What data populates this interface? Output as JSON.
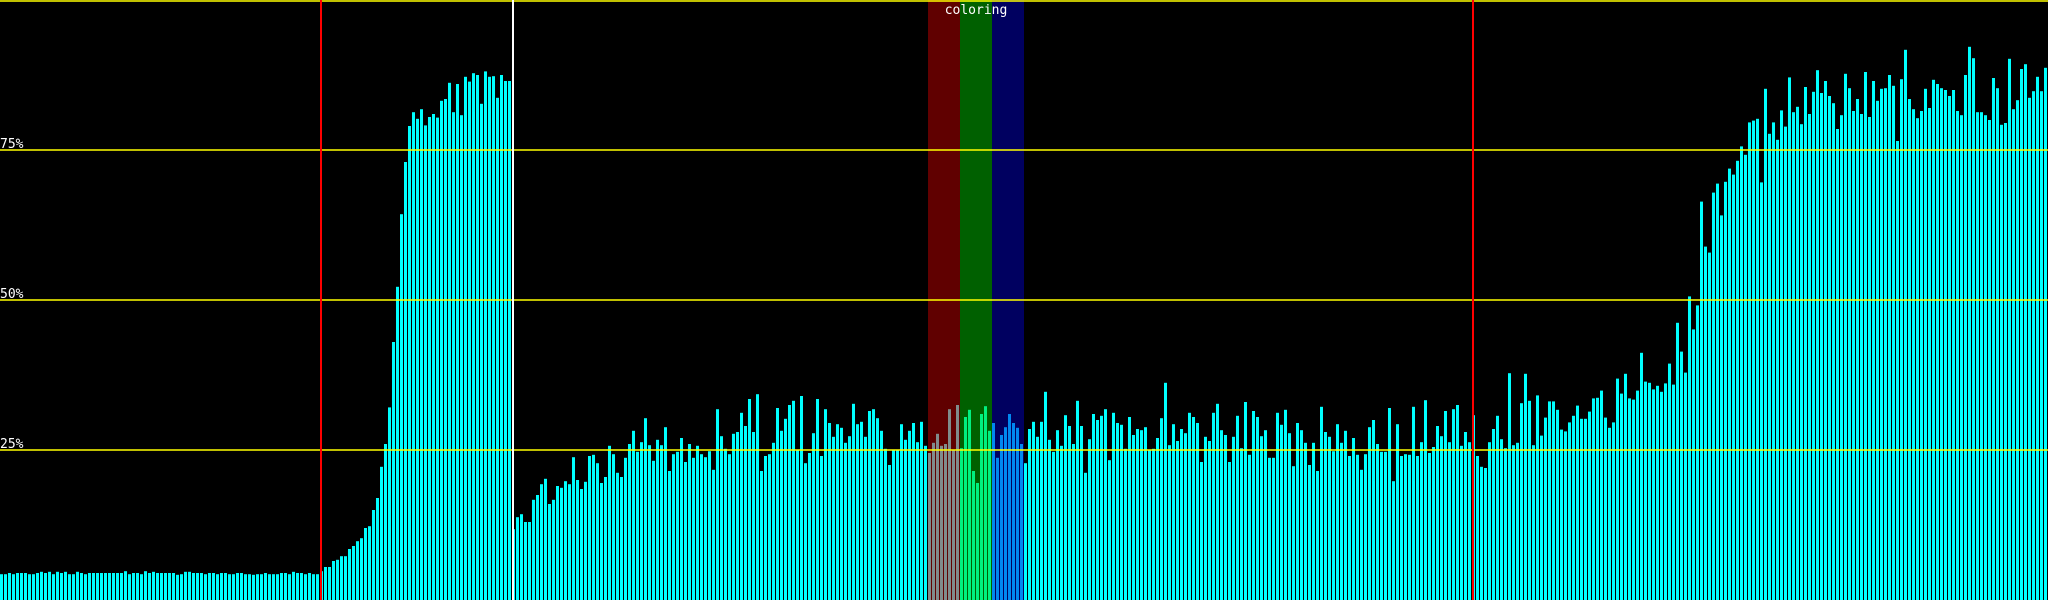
{
  "chart_data": {
    "type": "bar",
    "title": "",
    "xlabel": "",
    "ylabel": "",
    "ylim": [
      0,
      100
    ],
    "grid": true,
    "yticks": [
      {
        "value": 25,
        "label": "25%"
      },
      {
        "value": 50,
        "label": "50%"
      },
      {
        "value": 75,
        "label": "75%"
      },
      {
        "value": 100,
        "label": ""
      }
    ],
    "colors": {
      "background": "#000000",
      "bar": "#00ffff",
      "gridline": "#ffff00",
      "tick_label": "#ffffff"
    },
    "markers": [
      {
        "bar": 80,
        "color": "#ff0000"
      },
      {
        "bar": 128,
        "color": "#ffffff"
      },
      {
        "bar": 368,
        "color": "#ff0000"
      }
    ],
    "band": {
      "label": "coloring",
      "segments": [
        {
          "start_bar": 232,
          "end_bar": 240,
          "background": "#600000",
          "bar_color": "#808c8c"
        },
        {
          "start_bar": 240,
          "end_bar": 248,
          "background": "#006000",
          "bar_color": "#00f080"
        },
        {
          "start_bar": 248,
          "end_bar": 256,
          "background": "#000060",
          "bar_color": "#0088f0"
        }
      ]
    },
    "values": [
      4.3,
      4.3,
      4.5,
      4.3,
      4.5,
      4.5,
      4.5,
      4.3,
      4.3,
      4.5,
      4.7,
      4.5,
      4.7,
      4.3,
      4.7,
      4.5,
      4.7,
      4.3,
      4.3,
      4.7,
      4.5,
      4.3,
      4.5,
      4.5,
      4.5,
      4.5,
      4.5,
      4.5,
      4.5,
      4.5,
      4.5,
      4.8,
      4.3,
      4.5,
      4.5,
      4.3,
      4.8,
      4.5,
      4.7,
      4.5,
      4.5,
      4.5,
      4.5,
      4.5,
      4.2,
      4.3,
      4.7,
      4.7,
      4.5,
      4.5,
      4.5,
      4.3,
      4.5,
      4.5,
      4.3,
      4.5,
      4.5,
      4.3,
      4.3,
      4.5,
      4.5,
      4.3,
      4.3,
      4.2,
      4.3,
      4.3,
      4.5,
      4.3,
      4.3,
      4.3,
      4.5,
      4.5,
      4.3,
      4.7,
      4.5,
      4.5,
      4.3,
      4.5,
      4.3,
      4.3,
      4.8,
      5.5,
      5.5,
      6.5,
      6.7,
      7.3,
      7.3,
      8.5,
      9.0,
      9.8,
      10.3,
      12.0,
      12.3,
      15.0,
      17.0,
      22.2,
      26.0,
      32.1,
      43.0,
      52.2,
      64.3,
      73.0,
      79.0,
      81.3,
      80.2,
      81.8,
      79.1,
      80.5,
      81.0,
      80.4,
      83.2,
      83.5,
      86.2,
      81.3,
      86.0,
      80.8,
      87.2,
      86.4,
      87.8,
      87.5,
      82.7,
      88.1,
      87.2,
      87.3,
      83.7,
      87.5,
      86.5,
      86.5,
      11.8,
      13.8,
      14.3,
      13.0,
      13.0,
      16.7,
      17.5,
      19.3,
      20.2,
      16.0,
      16.7,
      19.0,
      18.7,
      19.8,
      19.3,
      23.8,
      20.0,
      18.5,
      19.7,
      24.0,
      24.2,
      22.8,
      19.5,
      20.5,
      25.7,
      24.3,
      21.2,
      20.5,
      23.7,
      26.0,
      28.2,
      24.7,
      26.3,
      30.3,
      25.8,
      23.2,
      26.7,
      25.8,
      28.8,
      21.5,
      24.3,
      24.7,
      27.0,
      23.0,
      26.0,
      23.7,
      25.7,
      24.3,
      23.8,
      24.8,
      21.7,
      31.8,
      27.3,
      25.2,
      24.3,
      27.7,
      28.0,
      31.2,
      29.0,
      33.5,
      28.0,
      34.3,
      21.5,
      24.0,
      24.3,
      26.2,
      32.0,
      28.2,
      30.2,
      32.5,
      33.2,
      25.0,
      34.0,
      22.8,
      24.5,
      27.8,
      33.5,
      24.0,
      31.8,
      29.5,
      27.2,
      29.3,
      28.7,
      26.2,
      27.3,
      32.7,
      29.3,
      29.7,
      27.2,
      31.5,
      31.8,
      30.3,
      28.2,
      25.2,
      22.5,
      25.0,
      25.0,
      29.3,
      26.7,
      28.2,
      29.5,
      26.3,
      29.7,
      25.7,
      24.5,
      26.2,
      27.7,
      25.7,
      26.0,
      31.8,
      25.0,
      32.5,
      25.3,
      30.5,
      31.7,
      21.5,
      19.5,
      31.0,
      32.3,
      28.2,
      29.5,
      23.7,
      27.5,
      28.8,
      31.0,
      29.5,
      28.7,
      26.0,
      22.8,
      28.5,
      29.7,
      27.2,
      29.7,
      34.7,
      26.7,
      24.7,
      28.3,
      25.7,
      30.8,
      29.0,
      26.0,
      33.2,
      29.0,
      21.2,
      26.8,
      31.0,
      30.0,
      30.7,
      31.8,
      23.3,
      31.2,
      29.5,
      29.2,
      25.2,
      30.5,
      27.5,
      28.5,
      28.3,
      28.8,
      25.0,
      25.2,
      27.0,
      30.3,
      36.2,
      25.8,
      29.3,
      26.5,
      28.5,
      27.8,
      31.2,
      30.5,
      29.5,
      23.0,
      27.2,
      26.5,
      31.2,
      32.7,
      28.3,
      27.5,
      23.0,
      27.2,
      30.7,
      25.3,
      33.0,
      24.2,
      31.5,
      30.5,
      27.3,
      28.3,
      23.7,
      23.7,
      31.2,
      29.2,
      31.7,
      27.8,
      22.3,
      29.5,
      28.3,
      26.2,
      22.5,
      26.2,
      21.5,
      32.2,
      28.0,
      27.2,
      24.8,
      29.3,
      26.2,
      28.2,
      24.0,
      27.0,
      24.2,
      21.7,
      24.3,
      28.8,
      30.0,
      26.0,
      24.7,
      24.7,
      32.0,
      19.8,
      29.3,
      24.0,
      24.3,
      24.2,
      32.2,
      24.0,
      26.3,
      33.3,
      24.5,
      25.5,
      29.0,
      27.3,
      31.5,
      26.3,
      31.8,
      32.5,
      25.7,
      28.0,
      26.3,
      30.8,
      24.0,
      22.2,
      22.0,
      26.3,
      28.5,
      30.7,
      26.8,
      25.3,
      37.8,
      25.8,
      26.2,
      32.8,
      37.7,
      33.2,
      25.8,
      34.1,
      27.4,
      30.4,
      33.1,
      33.1,
      31.7,
      28.4,
      28.1,
      29.6,
      30.7,
      32.4,
      30.2,
      30.2,
      31.4,
      33.6,
      33.7,
      34.9,
      30.4,
      28.7,
      29.6,
      36.9,
      34.4,
      37.7,
      33.6,
      33.4,
      34.9,
      41.2,
      36.4,
      36.2,
      35.1,
      35.7,
      34.7,
      36.1,
      39.4,
      35.9,
      46.2,
      41.4,
      37.9,
      50.6,
      45.1,
      49.1,
      66.4,
      58.9,
      57.9,
      67.9,
      69.4,
      64.1,
      69.7,
      71.9,
      70.9,
      73.2,
      75.6,
      74.2,
      79.6,
      79.9,
      80.2,
      69.6,
      85.2,
      77.7,
      79.6,
      76.7,
      81.6,
      78.9,
      87.1,
      81.3,
      82.2,
      79.3,
      85.5,
      81.0,
      84.7,
      88.3,
      84.5,
      86.5,
      84.0,
      82.8,
      78.5,
      80.8,
      87.7,
      85.3,
      81.5,
      83.5,
      81.0,
      88.0,
      80.5,
      86.5,
      83.2,
      85.2,
      85.3,
      87.5,
      85.7,
      76.5,
      86.8,
      91.7,
      83.5,
      81.8,
      80.3,
      81.5,
      85.2,
      82.0,
      86.7,
      86.0,
      85.3,
      85.0,
      84.0,
      85.0,
      81.5,
      80.8,
      87.5,
      92.2,
      90.3,
      81.3,
      81.3,
      80.8,
      80.0,
      87.0,
      85.3,
      79.2,
      79.5,
      90.2,
      81.8,
      83.3,
      88.5,
      89.3,
      83.7,
      84.8,
      87.2,
      84.8,
      88.7
    ]
  }
}
